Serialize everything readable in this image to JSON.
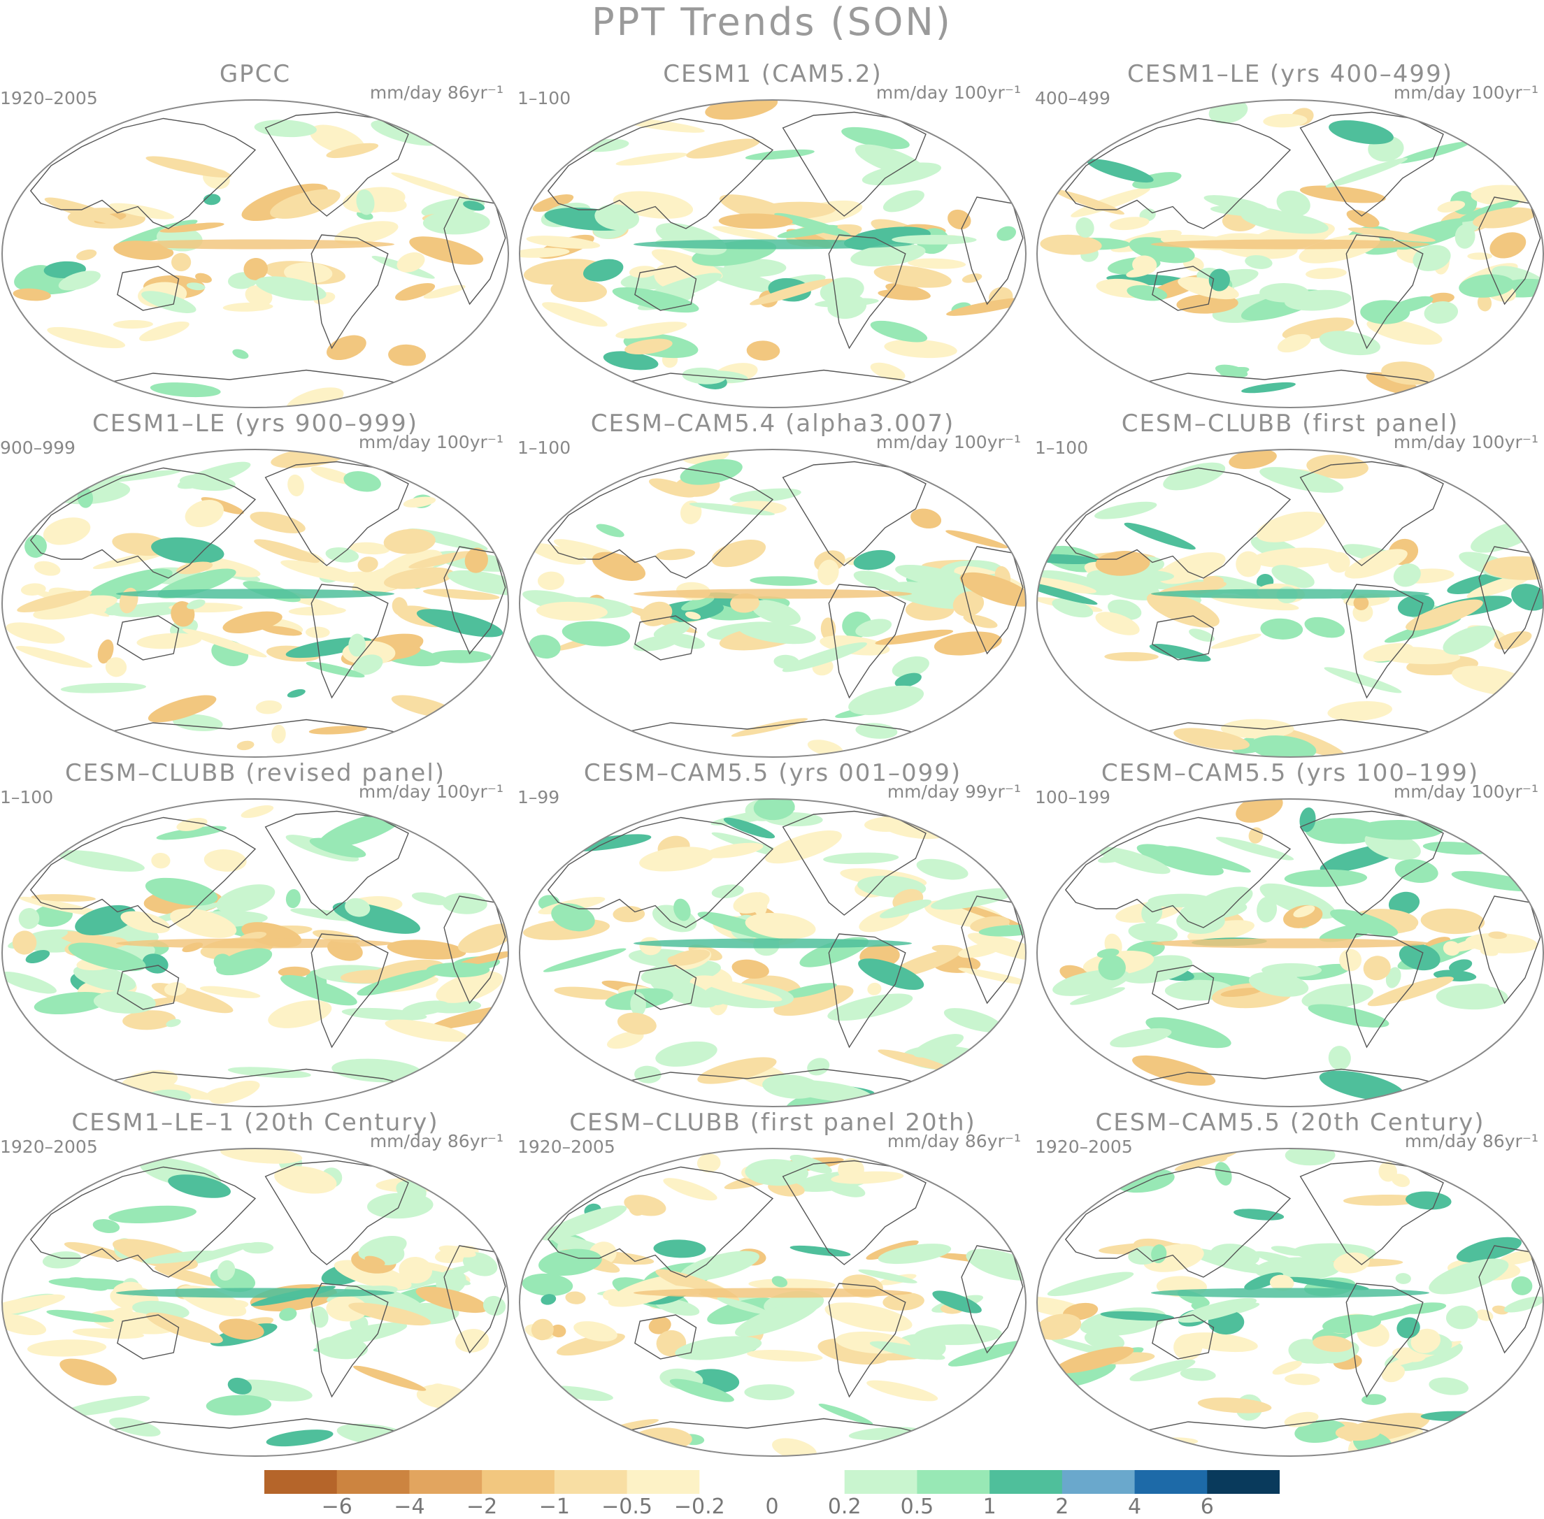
{
  "title": "PPT Trends (SON)",
  "colors": {
    "land_outline": "#555555",
    "frame": "#888888",
    "scale": [
      "#b5652a",
      "#cc8440",
      "#e2a55f",
      "#f2c77f",
      "#f8dea3",
      "#fdf2c6",
      "#ffffff",
      "#ffffff",
      "#c9f5cf",
      "#98e8b5",
      "#4fbf9b",
      "#6aa8cc",
      "#1d6aa8",
      "#093a5c"
    ]
  },
  "panels": [
    {
      "title": "GPCC",
      "years": "1920–2005",
      "units": "mm/day 86yr⁻¹"
    },
    {
      "title": "CESM1 (CAM5.2)",
      "years": "1–100",
      "units": "mm/day 100yr⁻¹"
    },
    {
      "title": "CESM1–LE (yrs 400–499)",
      "years": "400–499",
      "units": "mm/day 100yr⁻¹"
    },
    {
      "title": "CESM1–LE (yrs 900–999)",
      "years": "900–999",
      "units": "mm/day 100yr⁻¹"
    },
    {
      "title": "CESM–CAM5.4 (alpha3.007)",
      "years": "1–100",
      "units": "mm/day 100yr⁻¹"
    },
    {
      "title": "CESM–CLUBB (first panel)",
      "years": "1–100",
      "units": "mm/day 100yr⁻¹"
    },
    {
      "title": "CESM–CLUBB (revised panel)",
      "years": "1–100",
      "units": "mm/day 100yr⁻¹"
    },
    {
      "title": "CESM–CAM5.5 (yrs 001–099)",
      "years": "1–99",
      "units": "mm/day 99yr⁻¹"
    },
    {
      "title": "CESM–CAM5.5 (yrs 100–199)",
      "years": "100–199",
      "units": "mm/day 100yr⁻¹"
    },
    {
      "title": "CESM1–LE–1 (20th Century)",
      "years": "1920–2005",
      "units": "mm/day 86yr⁻¹"
    },
    {
      "title": "CESM–CLUBB (first panel 20th)",
      "years": "1920–2005",
      "units": "mm/day 86yr⁻¹"
    },
    {
      "title": "CESM–CAM5.5 (20th Century)",
      "years": "1920–2005",
      "units": "mm/day 86yr⁻¹"
    }
  ],
  "colorbar": {
    "labels": [
      "−6",
      "−4",
      "−2",
      "−1",
      "−0.5",
      "−0.2",
      "0",
      "0.2",
      "0.5",
      "1",
      "2",
      "4",
      "6"
    ]
  }
}
